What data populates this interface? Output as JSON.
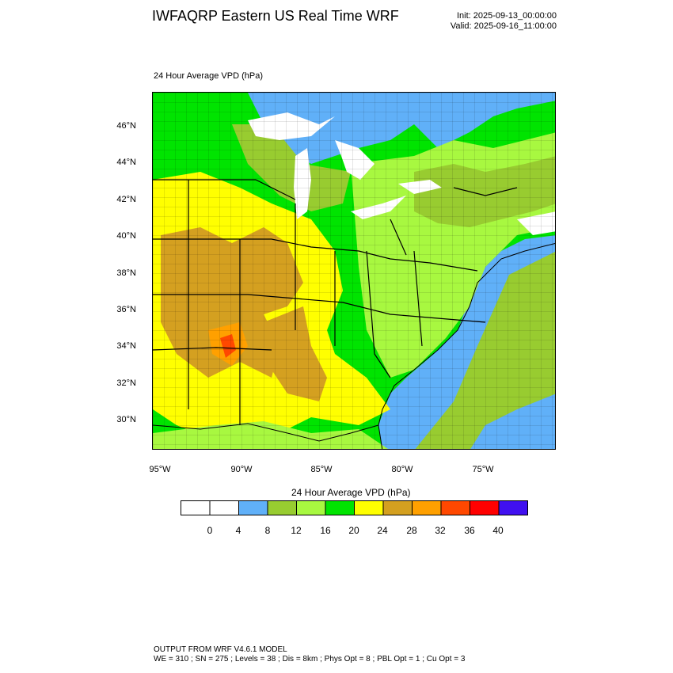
{
  "header": {
    "title": "IWFAQRP Eastern US Real Time WRF",
    "init": "Init: 2025-09-13_00:00:00",
    "valid": "Valid: 2025-09-16_11:00:00"
  },
  "plot": {
    "label": "24 Hour Average VPD   (hPa)"
  },
  "axes": {
    "lat_labels": [
      "46°N",
      "44°N",
      "42°N",
      "40°N",
      "38°N",
      "36°N",
      "34°N",
      "32°N",
      "30°N"
    ],
    "lon_labels": [
      "95°W",
      "90°W",
      "85°W",
      "80°W",
      "75°W"
    ]
  },
  "colorbar": {
    "title": "24 Hour Average VPD  (hPa)",
    "labels": [
      "0",
      "4",
      "8",
      "12",
      "16",
      "20",
      "24",
      "28",
      "32",
      "36",
      "40"
    ],
    "colors": [
      "#ffffff",
      "#ffffff",
      "#60b0f8",
      "#98cc30",
      "#a8f840",
      "#00e400",
      "#ffff00",
      "#d4a020",
      "#ffa000",
      "#ff4800",
      "#ff0000",
      "#4010f0"
    ]
  },
  "footer": {
    "line1": "OUTPUT FROM WRF V4.6.1 MODEL",
    "line2": "WE = 310 ; SN = 275 ; Levels = 38 ; Dis = 8km ; Phys Opt = 8 ; PBL Opt = 1 ; Cu Opt = 3"
  }
}
